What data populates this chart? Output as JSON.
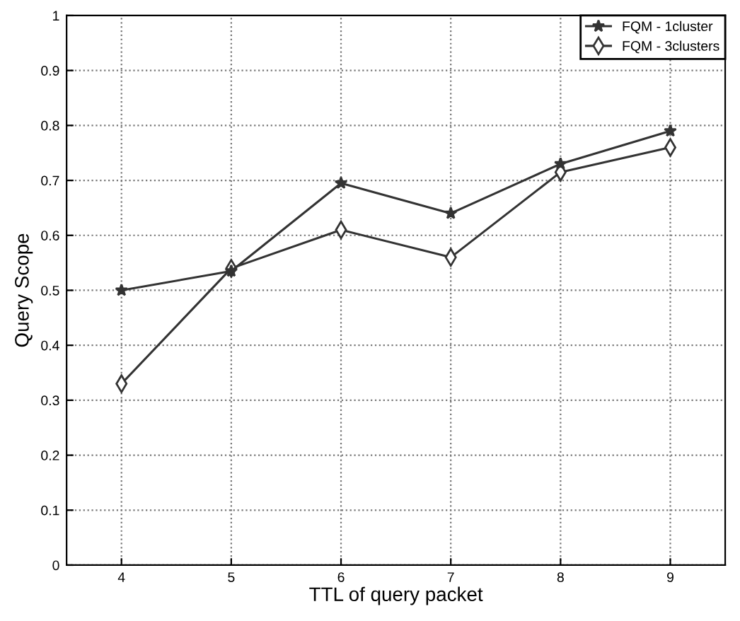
{
  "chart_data": {
    "type": "line",
    "xlabel": "TTL of query packet",
    "ylabel": "Query Scope",
    "x": [
      4,
      5,
      6,
      7,
      8,
      9
    ],
    "series": [
      {
        "name": "FQM - 1cluster",
        "color": "#333333",
        "marker": "star",
        "values": [
          0.5,
          0.535,
          0.695,
          0.64,
          0.73,
          0.79
        ]
      },
      {
        "name": "FQM - 3clusters",
        "color": "#333333",
        "marker": "diamond",
        "values": [
          0.33,
          0.54,
          0.61,
          0.56,
          0.715,
          0.76
        ]
      }
    ],
    "xlim": [
      3.5,
      9.5
    ],
    "xticks": [
      4,
      5,
      6,
      7,
      8,
      9
    ],
    "ylim": [
      0,
      1
    ],
    "yticks": [
      0,
      0.1,
      0.2,
      0.3,
      0.4,
      0.5,
      0.6,
      0.7,
      0.8,
      0.9,
      1
    ],
    "grid": true,
    "legend": "top right",
    "line_style": "solid"
  }
}
